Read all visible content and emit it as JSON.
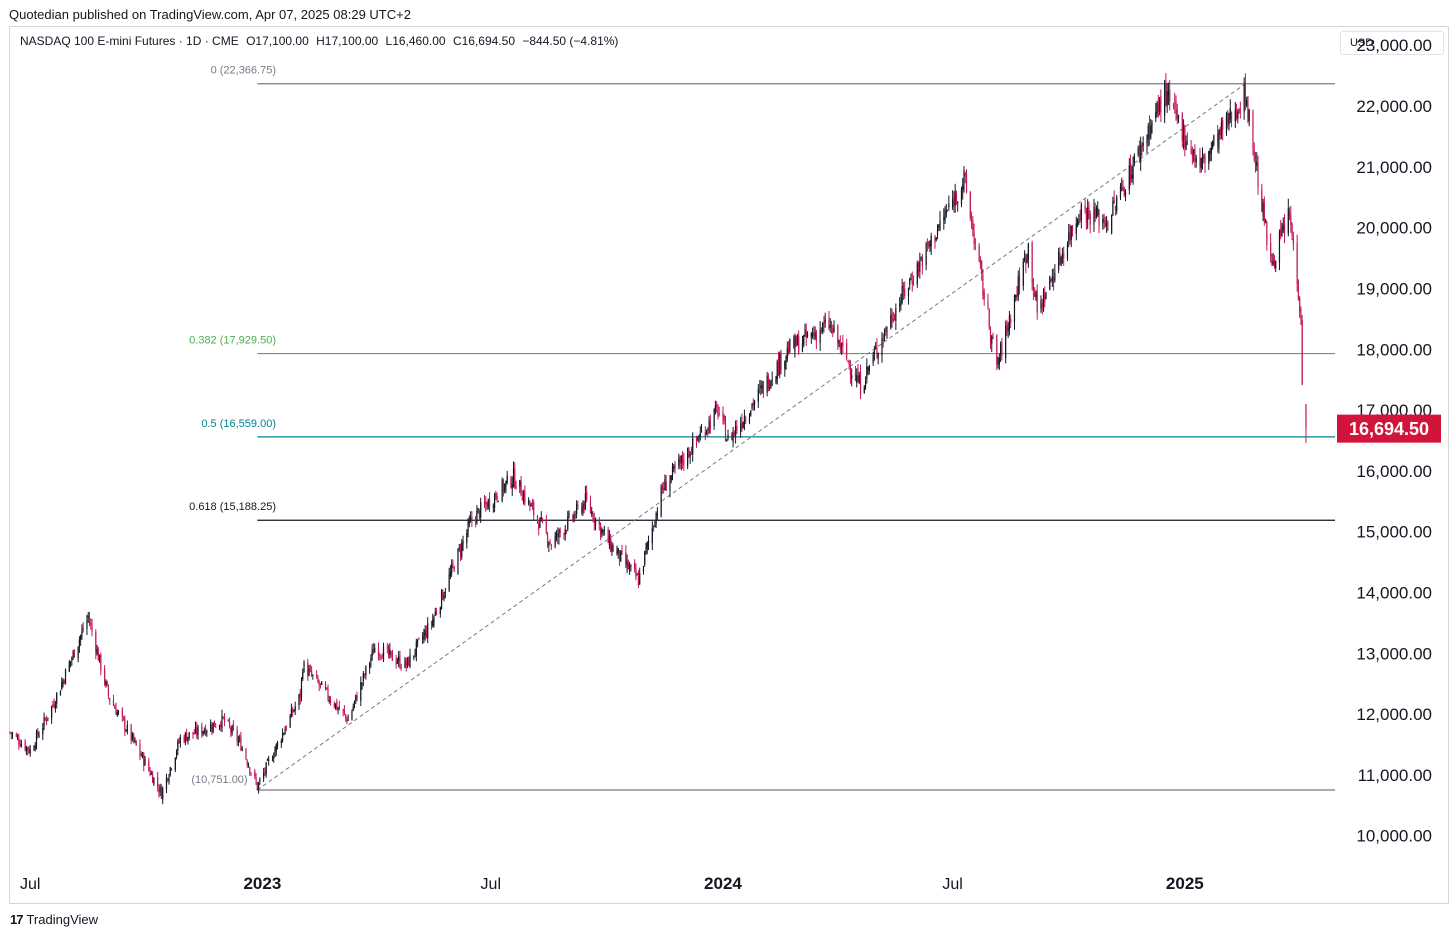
{
  "header": {
    "publisher": "Quotedian published on TradingView.com, Apr 07, 2025 08:29 UTC+2",
    "symbol": "NASDAQ 100 E-mini Futures · 1D · CME",
    "open": "O17,100.00",
    "high": "H17,100.00",
    "low": "L16,460.00",
    "close": "C16,694.50",
    "change": "−844.50 (−4.81%)"
  },
  "currency_label": "USD",
  "footer": {
    "brand": "TradingView",
    "logo_text": "17"
  },
  "last_price": {
    "label": "16,694.50",
    "value": 16694.5,
    "color": "#d2133a"
  },
  "colors": {
    "candle_up": "#131722",
    "candle_down": "#c2185b",
    "fib_0382": "#4caf50",
    "fib_05": "#00838f",
    "fib_0618": "#131722",
    "fib_0": "#787b86",
    "trend": "#787b86"
  },
  "chart_data": {
    "type": "candlestick",
    "title": "NASDAQ 100 E-mini Futures · 1D · CME",
    "ylim": [
      9600,
      23300
    ],
    "yticks": [
      10000,
      11000,
      12000,
      13000,
      14000,
      15000,
      16000,
      17000,
      18000,
      19000,
      20000,
      21000,
      22000,
      23000
    ],
    "ytick_labels": [
      "10,000.00",
      "11,000.00",
      "12,000.00",
      "13,000.00",
      "14,000.00",
      "15,000.00",
      "16,000.00",
      "17,000.00",
      "18,000.00",
      "19,000.00",
      "20,000.00",
      "21,000.00",
      "22,000.00",
      "23,000.00"
    ],
    "x_range": [
      "2022-06-15",
      "2025-04-30"
    ],
    "xticks": [
      {
        "date": "2022-07-01",
        "label": "Jul",
        "bold": false
      },
      {
        "date": "2023-01-01",
        "label": "2023",
        "bold": true
      },
      {
        "date": "2023-07-01",
        "label": "Jul",
        "bold": false
      },
      {
        "date": "2024-01-01",
        "label": "2024",
        "bold": true
      },
      {
        "date": "2024-07-01",
        "label": "Jul",
        "bold": false
      },
      {
        "date": "2025-01-01",
        "label": "2025",
        "bold": true
      }
    ],
    "price_path": [
      [
        "2022-06-15",
        11700
      ],
      [
        "2022-07-01",
        11400
      ],
      [
        "2022-07-20",
        12200
      ],
      [
        "2022-08-16",
        13600
      ],
      [
        "2022-09-01",
        12300
      ],
      [
        "2022-09-30",
        11200
      ],
      [
        "2022-10-13",
        10700
      ],
      [
        "2022-10-28",
        11600
      ],
      [
        "2022-11-10",
        11700
      ],
      [
        "2022-12-01",
        11900
      ],
      [
        "2022-12-15",
        11500
      ],
      [
        "2022-12-28",
        10800
      ],
      [
        "2023-01-31",
        12300
      ],
      [
        "2023-02-02",
        12800
      ],
      [
        "2023-03-10",
        11900
      ],
      [
        "2023-03-31",
        13100
      ],
      [
        "2023-04-25",
        12800
      ],
      [
        "2023-05-15",
        13500
      ],
      [
        "2023-06-16",
        15200
      ],
      [
        "2023-07-19",
        15900
      ],
      [
        "2023-08-18",
        14800
      ],
      [
        "2023-09-14",
        15500
      ],
      [
        "2023-10-03",
        14800
      ],
      [
        "2023-10-26",
        14200
      ],
      [
        "2023-11-14",
        15700
      ],
      [
        "2023-12-28",
        17000
      ],
      [
        "2024-01-05",
        16500
      ],
      [
        "2024-02-22",
        18000
      ],
      [
        "2024-03-25",
        18400
      ],
      [
        "2024-04-19",
        17400
      ],
      [
        "2024-05-15",
        18600
      ],
      [
        "2024-06-20",
        20000
      ],
      [
        "2024-07-10",
        20800
      ],
      [
        "2024-07-25",
        19000
      ],
      [
        "2024-08-05",
        17700
      ],
      [
        "2024-08-30",
        19700
      ],
      [
        "2024-09-06",
        18600
      ],
      [
        "2024-10-10",
        20300
      ],
      [
        "2024-11-01",
        20100
      ],
      [
        "2024-12-16",
        22200
      ],
      [
        "2025-01-13",
        21000
      ],
      [
        "2025-02-18",
        22200
      ],
      [
        "2025-03-10",
        19400
      ],
      [
        "2025-03-25",
        20200
      ],
      [
        "2025-04-03",
        18600
      ],
      [
        "2025-04-04",
        17500
      ],
      [
        "2025-04-07",
        16694.5
      ]
    ],
    "series": [
      {
        "name": "0.382",
        "label": "0.382 (17,929.50)",
        "value": 17929.5
      },
      {
        "name": "0.5",
        "label": "0.5 (16,559.00)",
        "value": 16559.0
      },
      {
        "name": "0.618",
        "label": "0.618 (15,188.25)",
        "value": 15188.25
      },
      {
        "name": "0",
        "label": "0 (22,366.75)",
        "value": 22366.75
      },
      {
        "name": "1",
        "label": "(10,751.00)",
        "value": 10751.0
      }
    ],
    "fib_start_date": "2022-12-28",
    "fib_end_date": "2025-04-30",
    "trendline": {
      "from": [
        "2022-12-28",
        10751.0
      ],
      "to": [
        "2025-02-18",
        22366.75
      ]
    }
  }
}
